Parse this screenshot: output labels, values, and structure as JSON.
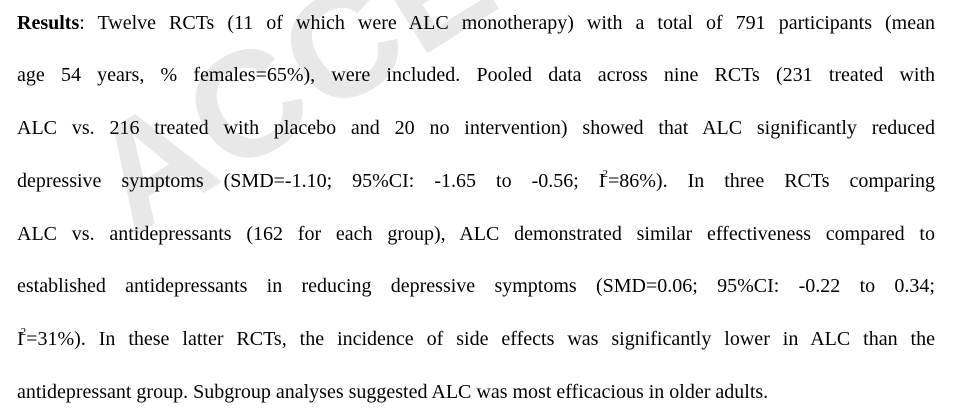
{
  "watermark": "ACCEPTED",
  "paragraph": {
    "heading": "Results",
    "lines": [
      ": Twelve RCTs (11 of which were ALC monotherapy) with a total of 791 participants (mean",
      "age 54 years, % females=65%), were included. Pooled data across nine RCTs (231 treated with",
      "ALC vs. 216 treated with placebo and 20 no intervention) showed that ALC significantly reduced",
      "depressive symptoms (SMD=-1.10; 95%CI: -1.65 to -0.56; I",
      "=86%). In three RCTs comparing",
      "ALC vs. antidepressants (162 for each group), ALC demonstrated similar effectiveness compared to",
      "established antidepressants in reducing depressive symptoms (SMD=0.06; 95%CI: -0.22 to 0.34;",
      "I",
      "=31%). In these latter RCTs, the incidence of side effects was significantly lower in ALC than the",
      "antidepressant group.  Subgroup analyses suggested ALC was most efficacious in older adults."
    ],
    "sup": "2"
  }
}
